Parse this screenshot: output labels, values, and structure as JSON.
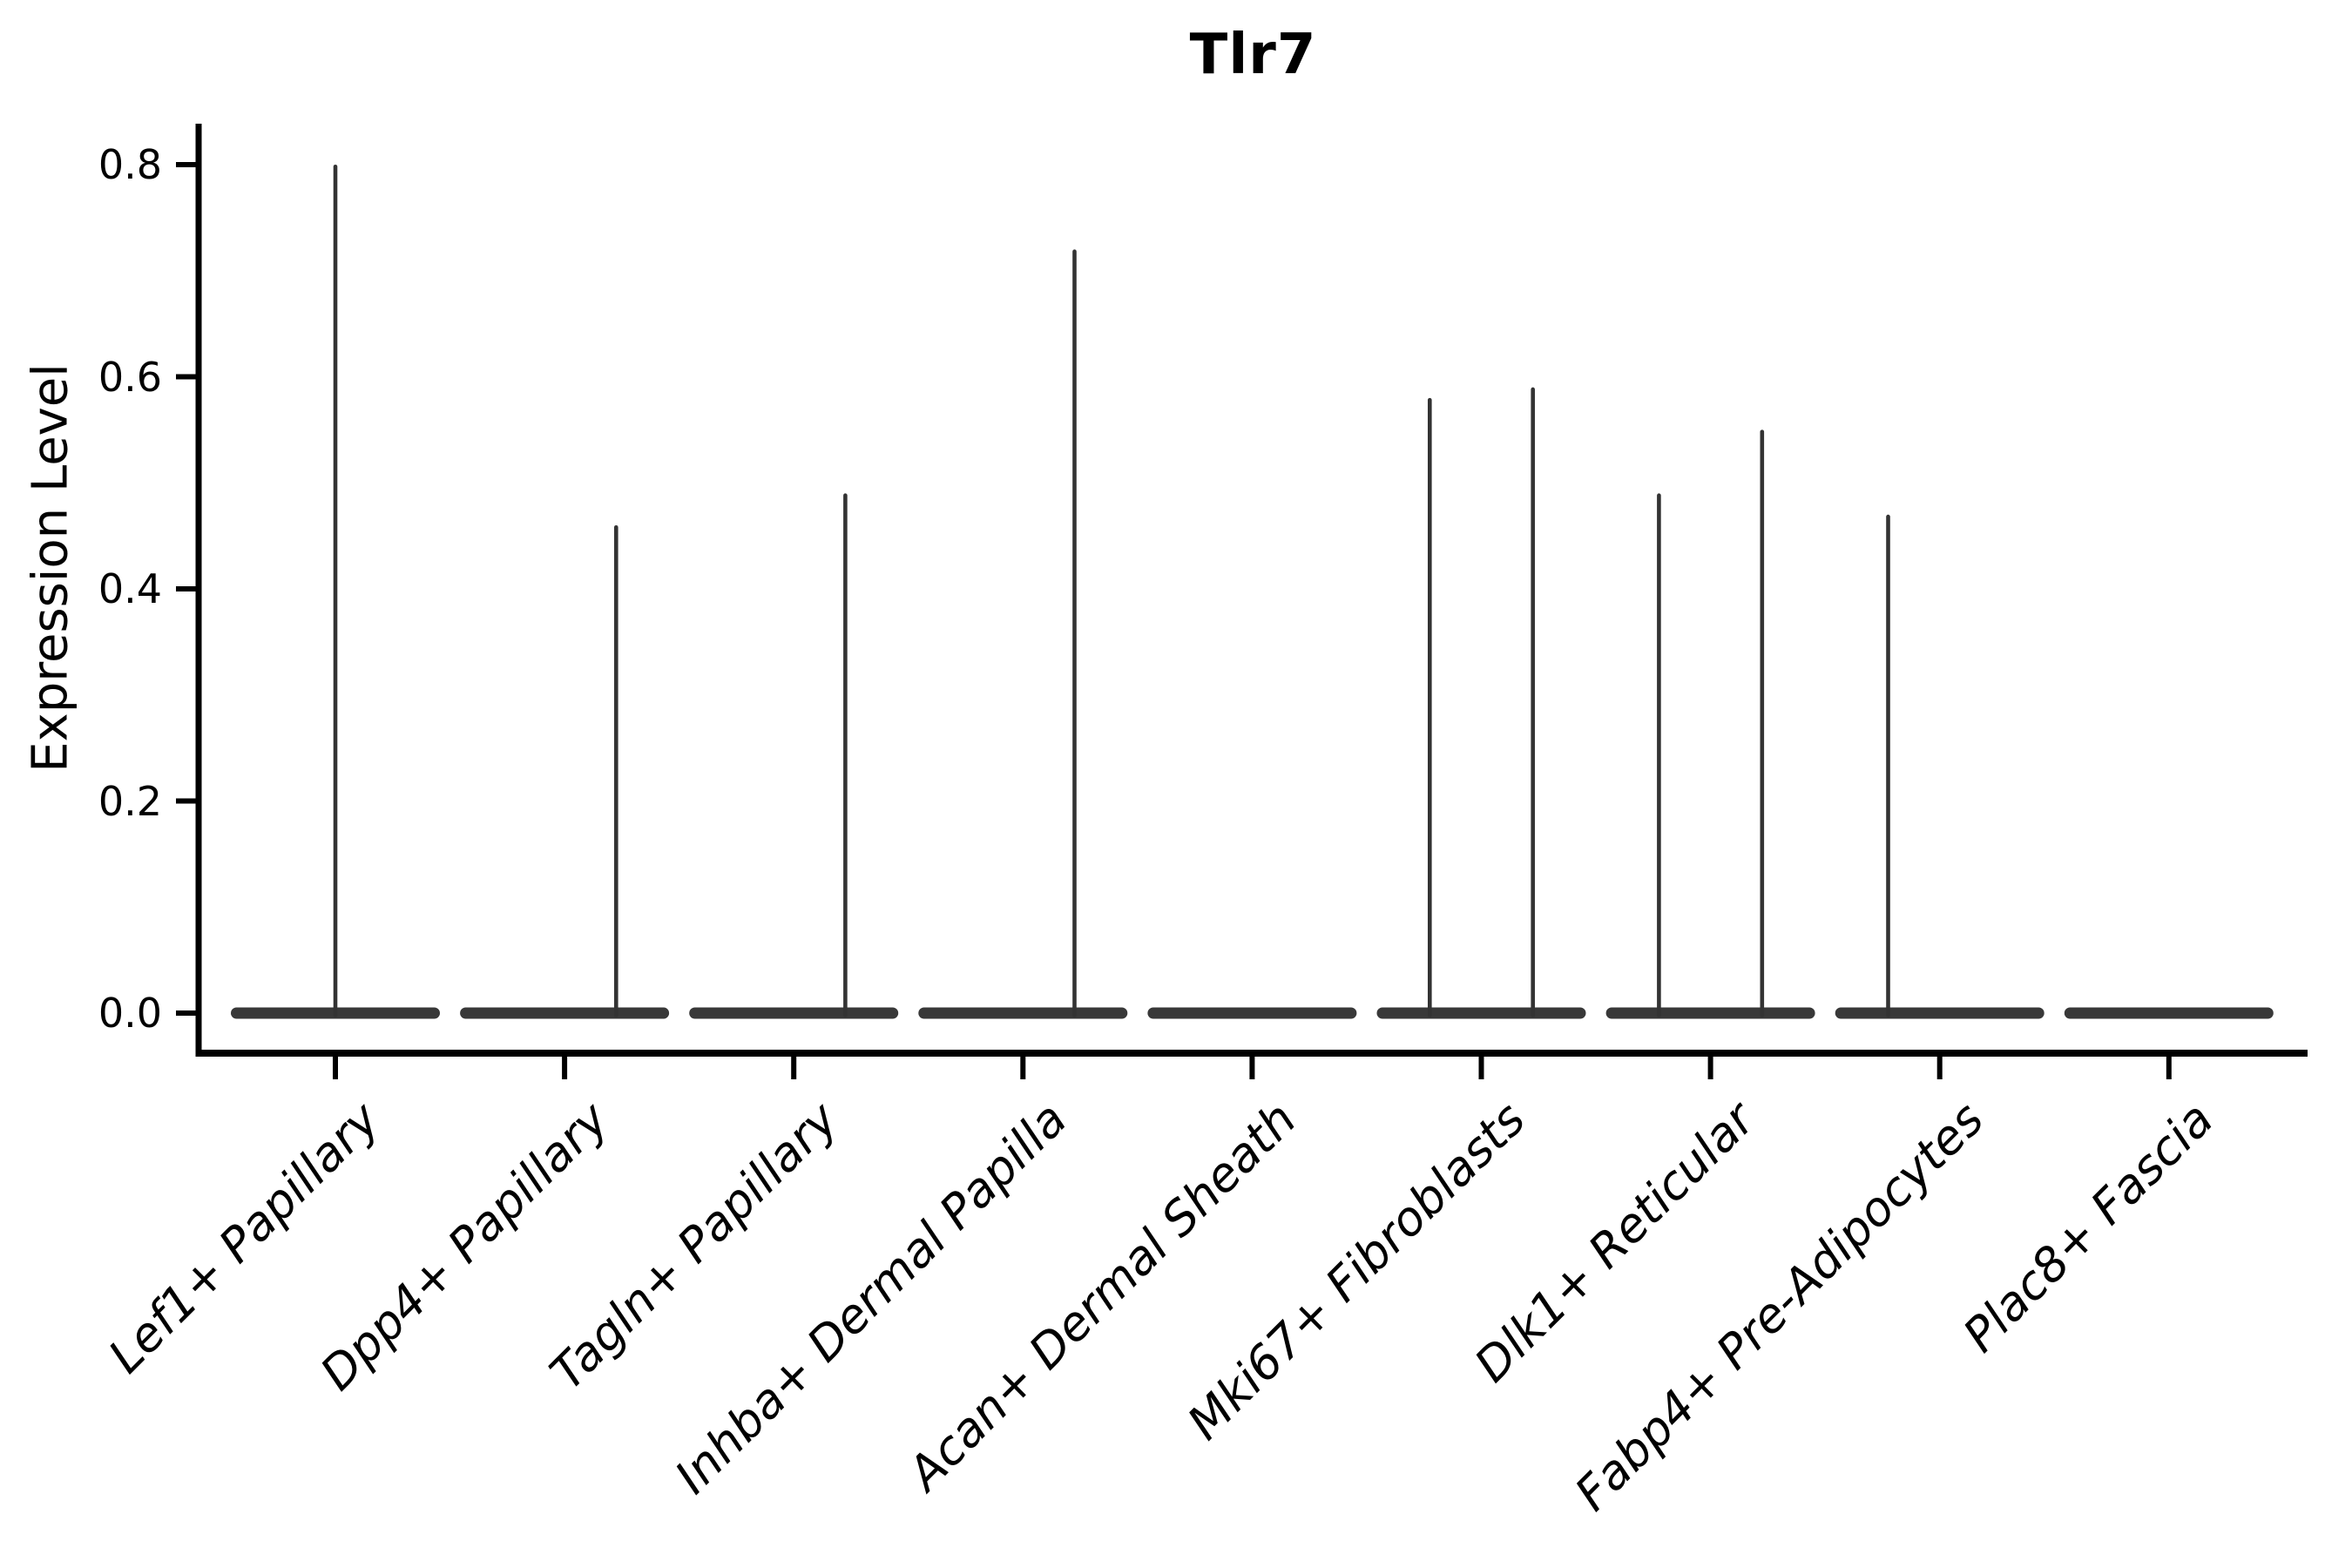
{
  "figure": {
    "title": "Tlr7",
    "background": "#ffffff"
  },
  "chart_data": {
    "type": "violin",
    "title": "Tlr7",
    "xlabel": "",
    "ylabel": "Expression Level",
    "legend": "none",
    "grid": false,
    "ylim": [
      -0.04,
      0.84
    ],
    "yticks": [
      0.0,
      0.2,
      0.4,
      0.6,
      0.8
    ],
    "ytick_labels": [
      "0.0",
      "0.2",
      "0.4",
      "0.6",
      "0.8"
    ],
    "categories": [
      "Lef1+ Papillary",
      "Dpp4+ Papillary",
      "Tagln+ Papillary",
      "Inhba+ Dermal Papilla",
      "Acan+ Dermal Sheath",
      "Mki67+ Fibroblasts",
      "Dlk1+ Reticular",
      "Fabp4+ Pre-Adipocytes",
      "Plac8+ Fascia"
    ],
    "violins": [
      {
        "category": "Lef1+ Papillary",
        "baseline_value": 0.0,
        "width": 0.91,
        "spikes": [
          {
            "offset": 0.0,
            "peak": 0.8
          }
        ]
      },
      {
        "category": "Dpp4+ Papillary",
        "baseline_value": 0.0,
        "width": 0.91,
        "spikes": [
          {
            "offset": 0.225,
            "peak": 0.46
          }
        ]
      },
      {
        "category": "Tagln+ Papillary",
        "baseline_value": 0.0,
        "width": 0.91,
        "spikes": [
          {
            "offset": 0.225,
            "peak": 0.49
          }
        ]
      },
      {
        "category": "Inhba+ Dermal Papilla",
        "baseline_value": 0.0,
        "width": 0.91,
        "spikes": [
          {
            "offset": 0.225,
            "peak": 0.72
          }
        ]
      },
      {
        "category": "Acan+ Dermal Sheath",
        "baseline_value": 0.0,
        "width": 0.91,
        "spikes": []
      },
      {
        "category": "Mki67+ Fibroblasts",
        "baseline_value": 0.0,
        "width": 0.91,
        "spikes": [
          {
            "offset": -0.225,
            "peak": 0.58
          },
          {
            "offset": 0.225,
            "peak": 0.59
          }
        ]
      },
      {
        "category": "Dlk1+ Reticular",
        "baseline_value": 0.0,
        "width": 0.91,
        "spikes": [
          {
            "offset": -0.225,
            "peak": 0.49
          },
          {
            "offset": 0.225,
            "peak": 0.55
          }
        ]
      },
      {
        "category": "Fabp4+ Pre-Adipocytes",
        "baseline_value": 0.0,
        "width": 0.91,
        "spikes": [
          {
            "offset": -0.225,
            "peak": 0.47
          }
        ]
      },
      {
        "category": "Plac8+ Fascia",
        "baseline_value": 0.0,
        "width": 0.91,
        "spikes": []
      }
    ],
    "colors": {
      "violin": "#383838",
      "spike": "#333333",
      "axis": "#000000",
      "text": "#000000",
      "background": "#ffffff"
    }
  }
}
